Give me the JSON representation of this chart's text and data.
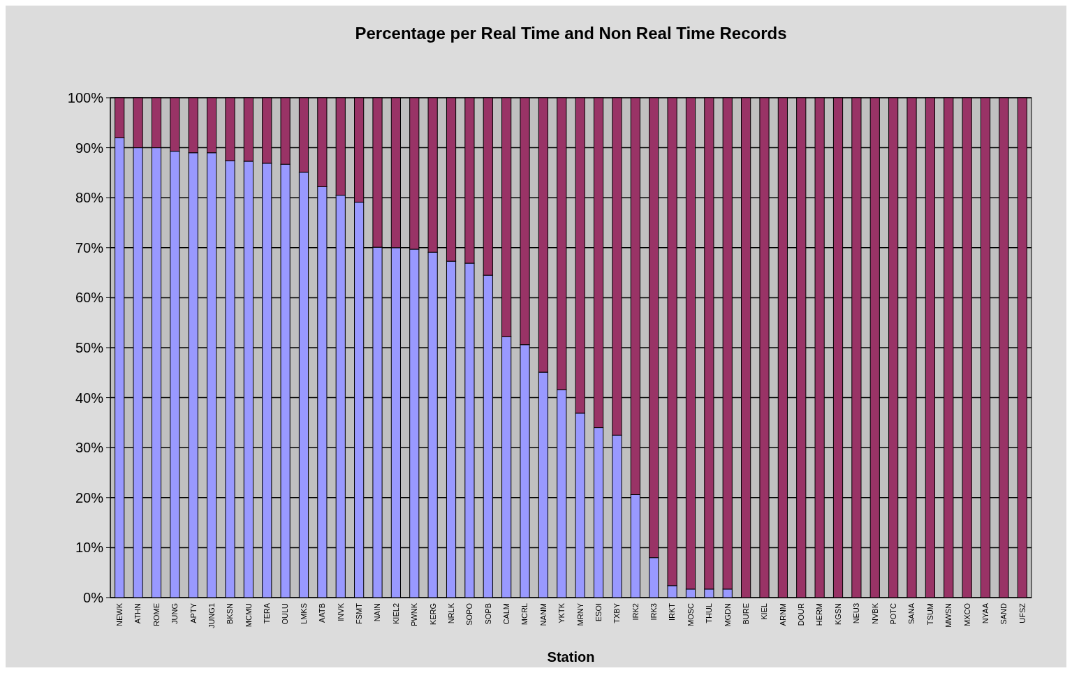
{
  "chart_data": {
    "type": "bar",
    "title": "Percentage per Real Time and Non Real Time Records",
    "xlabel": "Station",
    "categories": [
      "NEWK",
      "ATHN",
      "ROME",
      "JUNG",
      "APTY",
      "JUNG1",
      "BKSN",
      "MCMU",
      "TERA",
      "OULU",
      "LMKS",
      "AATB",
      "INVK",
      "FSMT",
      "NAIN",
      "KIEL2",
      "PWNK",
      "KERG",
      "NRLK",
      "SOPO",
      "SOPB",
      "CALM",
      "MCRL",
      "NANM",
      "YKTK",
      "MRNY",
      "ESOI",
      "TXBY",
      "IRK2",
      "IRK3",
      "IRKT",
      "MOSC",
      "THUL",
      "MGDN",
      "BURE",
      "KIEL",
      "ARNM",
      "DOUR",
      "HERM",
      "KGSN",
      "NEU3",
      "NVBK",
      "POTC",
      "SANA",
      "TSUM",
      "MWSN",
      "MXCO",
      "NYAA",
      "SAND",
      "UFSZ"
    ],
    "series": [
      {
        "color": "#9999ff",
        "values": [
          92,
          90,
          90,
          89.3,
          89,
          89,
          87.4,
          87.3,
          86.9,
          86.7,
          85.1,
          82.2,
          80.5,
          79.1,
          70.1,
          70,
          69.7,
          69.1,
          67.3,
          66.9,
          64.5,
          52.2,
          50.6,
          45.1,
          41.6,
          36.9,
          34,
          32.5,
          20.6,
          8,
          2.4,
          1.7,
          1.7,
          1.7,
          0,
          0,
          0,
          0,
          0,
          0,
          0,
          0,
          0,
          0,
          0,
          0,
          0,
          0,
          0,
          0
        ]
      },
      {
        "color": "#993366",
        "values": [
          8,
          10,
          10,
          10.7,
          11,
          11,
          12.6,
          12.7,
          13.1,
          13.3,
          14.9,
          17.8,
          19.5,
          20.9,
          29.9,
          30,
          30.3,
          30.9,
          32.7,
          33.1,
          35.5,
          47.8,
          49.4,
          54.9,
          58.4,
          63.1,
          66,
          67.5,
          79.4,
          92,
          97.6,
          98.3,
          98.3,
          98.3,
          100,
          100,
          100,
          100,
          100,
          100,
          100,
          100,
          100,
          100,
          100,
          100,
          100,
          100,
          100,
          100
        ]
      }
    ],
    "stacked": true,
    "ylim": [
      0,
      100
    ],
    "yticks": [
      {
        "value": 0,
        "label": "0%"
      },
      {
        "value": 10,
        "label": "10%"
      },
      {
        "value": 20,
        "label": "20%"
      },
      {
        "value": 30,
        "label": "30%"
      },
      {
        "value": 40,
        "label": "40%"
      },
      {
        "value": 50,
        "label": "50%"
      },
      {
        "value": 60,
        "label": "60%"
      },
      {
        "value": 70,
        "label": "70%"
      },
      {
        "value": 80,
        "label": "80%"
      },
      {
        "value": 90,
        "label": "90%"
      },
      {
        "value": 100,
        "label": "100%"
      }
    ],
    "grid": "y"
  }
}
